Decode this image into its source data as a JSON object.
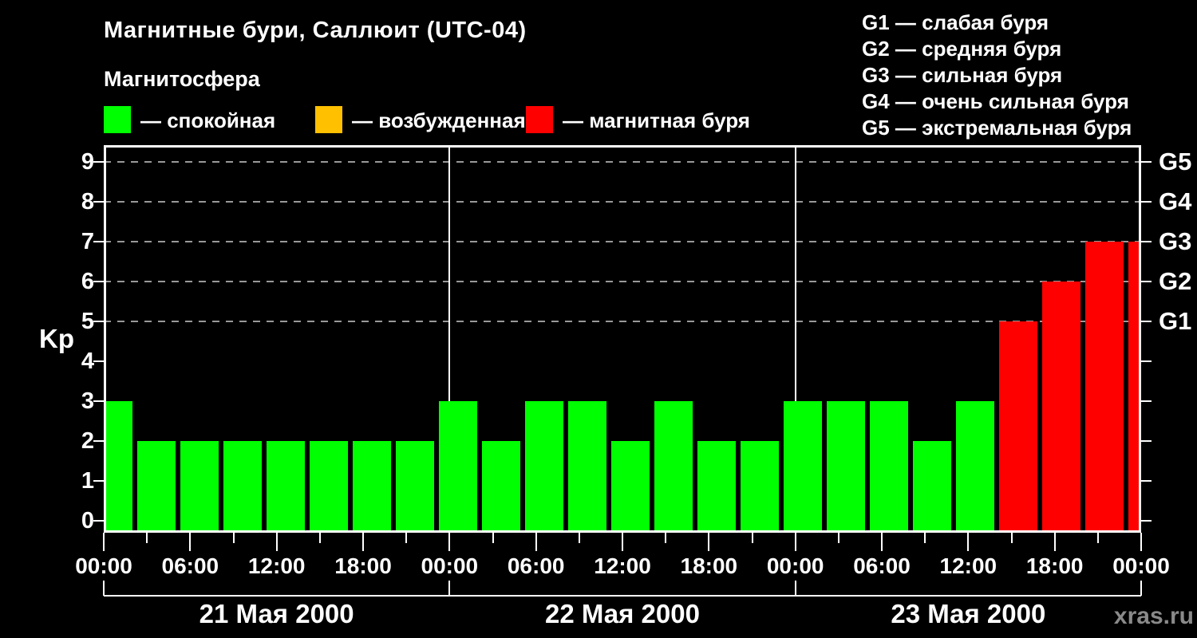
{
  "title": "Магнитные бури, Саллюит (UTC-04)",
  "legend": {
    "title": "Магнитосфера",
    "items": [
      {
        "name": "quiet",
        "label": "— спокойная",
        "color": "#00ff00"
      },
      {
        "name": "excited",
        "label": "— возбужденная",
        "color": "#ffc000"
      },
      {
        "name": "storm",
        "label": "— магнитная буря",
        "color": "#ff0000"
      }
    ]
  },
  "g_legend": [
    "G1 — слабая буря",
    "G2 — средняя буря",
    "G3 — сильная буря",
    "G4 — очень сильная буря",
    "G5 — экстремальная буря"
  ],
  "watermark": "xras.ru",
  "chart_data": {
    "type": "bar",
    "title": "Магнитные бури, Саллюит (UTC-04)",
    "ylabel": "Kp",
    "xlabel": "",
    "ylim": [
      0,
      9.7
    ],
    "grid": "dashed horizontal lines at Kp 5..9 only",
    "legend_position": "top",
    "y_ticks": [
      0,
      1,
      2,
      3,
      4,
      5,
      6,
      7,
      8,
      9
    ],
    "grid_levels_kp": [
      5,
      6,
      7,
      8,
      9
    ],
    "right_axis_labels": [
      {
        "kp": 5,
        "label": "G1"
      },
      {
        "kp": 6,
        "label": "G2"
      },
      {
        "kp": 7,
        "label": "G3"
      },
      {
        "kp": 8,
        "label": "G4"
      },
      {
        "kp": 9,
        "label": "G5"
      }
    ],
    "hours_per_bar": 3,
    "x_tick_minor_hours": 3,
    "x_tick_major_hours": 6,
    "x_tick_labels": [
      "00:00",
      "06:00",
      "12:00",
      "18:00",
      "00:00",
      "06:00",
      "12:00",
      "18:00",
      "00:00",
      "06:00",
      "12:00",
      "18:00",
      "00:00"
    ],
    "days": [
      {
        "date": "21 Мая 2000",
        "kp": [
          3,
          2,
          2,
          2,
          2,
          2,
          2,
          2
        ]
      },
      {
        "date": "22 Мая 2000",
        "kp": [
          3,
          2,
          3,
          3,
          2,
          3,
          2,
          2
        ]
      },
      {
        "date": "23 Мая 2000",
        "kp": [
          3,
          3,
          3,
          2,
          3,
          5,
          6,
          7
        ]
      }
    ],
    "next_day_partial_kp": 7,
    "color_rules": {
      "quiet_kp_max": 3,
      "excited_kp": 4,
      "storm_kp_min": 5
    },
    "colors": {
      "quiet": "#00ff00",
      "excited": "#ffc000",
      "storm": "#ff0000",
      "axis": "#ffffff",
      "grid": "#999999",
      "background": "#000000",
      "watermark": "#8a8a8a"
    }
  }
}
